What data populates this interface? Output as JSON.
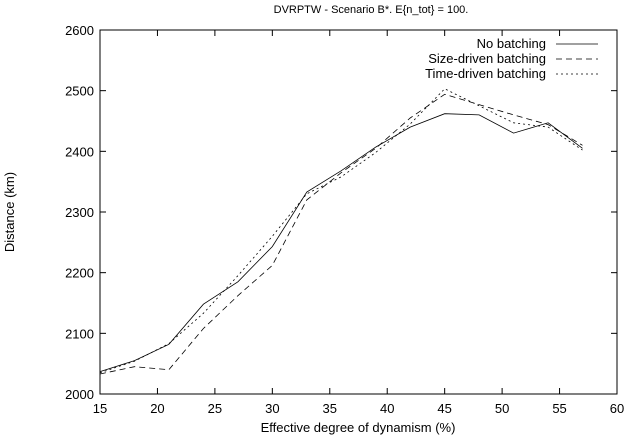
{
  "chart_data": {
    "type": "line",
    "title": "DVRPTW - Scenario B*. E{n_tot} = 100.",
    "xlabel": "Effective degree of dynamism (%)",
    "ylabel": "Distance (km)",
    "xlim": [
      15,
      60
    ],
    "ylim": [
      2000,
      2600
    ],
    "xticks": [
      15,
      20,
      25,
      30,
      35,
      40,
      45,
      50,
      55,
      60
    ],
    "yticks": [
      2000,
      2100,
      2200,
      2300,
      2400,
      2500,
      2600
    ],
    "grid": false,
    "legend_position": "top-right",
    "series": [
      {
        "name": "No batching",
        "style": "solid",
        "x": [
          15,
          18,
          21,
          24,
          27,
          30,
          33,
          36,
          39,
          42,
          45,
          48,
          51,
          54,
          57
        ],
        "y": [
          2037,
          2055,
          2082,
          2148,
          2185,
          2243,
          2333,
          2368,
          2407,
          2440,
          2462,
          2460,
          2430,
          2447,
          2405
        ]
      },
      {
        "name": "Size-driven batching",
        "style": "dashed",
        "x": [
          15,
          18,
          21,
          24,
          27,
          30,
          33,
          36,
          39,
          42,
          45,
          48,
          51,
          54,
          57
        ],
        "y": [
          2033,
          2045,
          2040,
          2108,
          2162,
          2212,
          2320,
          2365,
          2405,
          2455,
          2494,
          2477,
          2460,
          2444,
          2410
        ]
      },
      {
        "name": "Time-driven batching",
        "style": "dotted",
        "x": [
          15,
          18,
          21,
          24,
          27,
          30,
          33,
          36,
          39,
          42,
          45,
          48,
          51,
          54,
          57
        ],
        "y": [
          2035,
          2054,
          2083,
          2133,
          2195,
          2260,
          2330,
          2358,
          2398,
          2445,
          2503,
          2475,
          2447,
          2440,
          2402
        ]
      }
    ]
  }
}
